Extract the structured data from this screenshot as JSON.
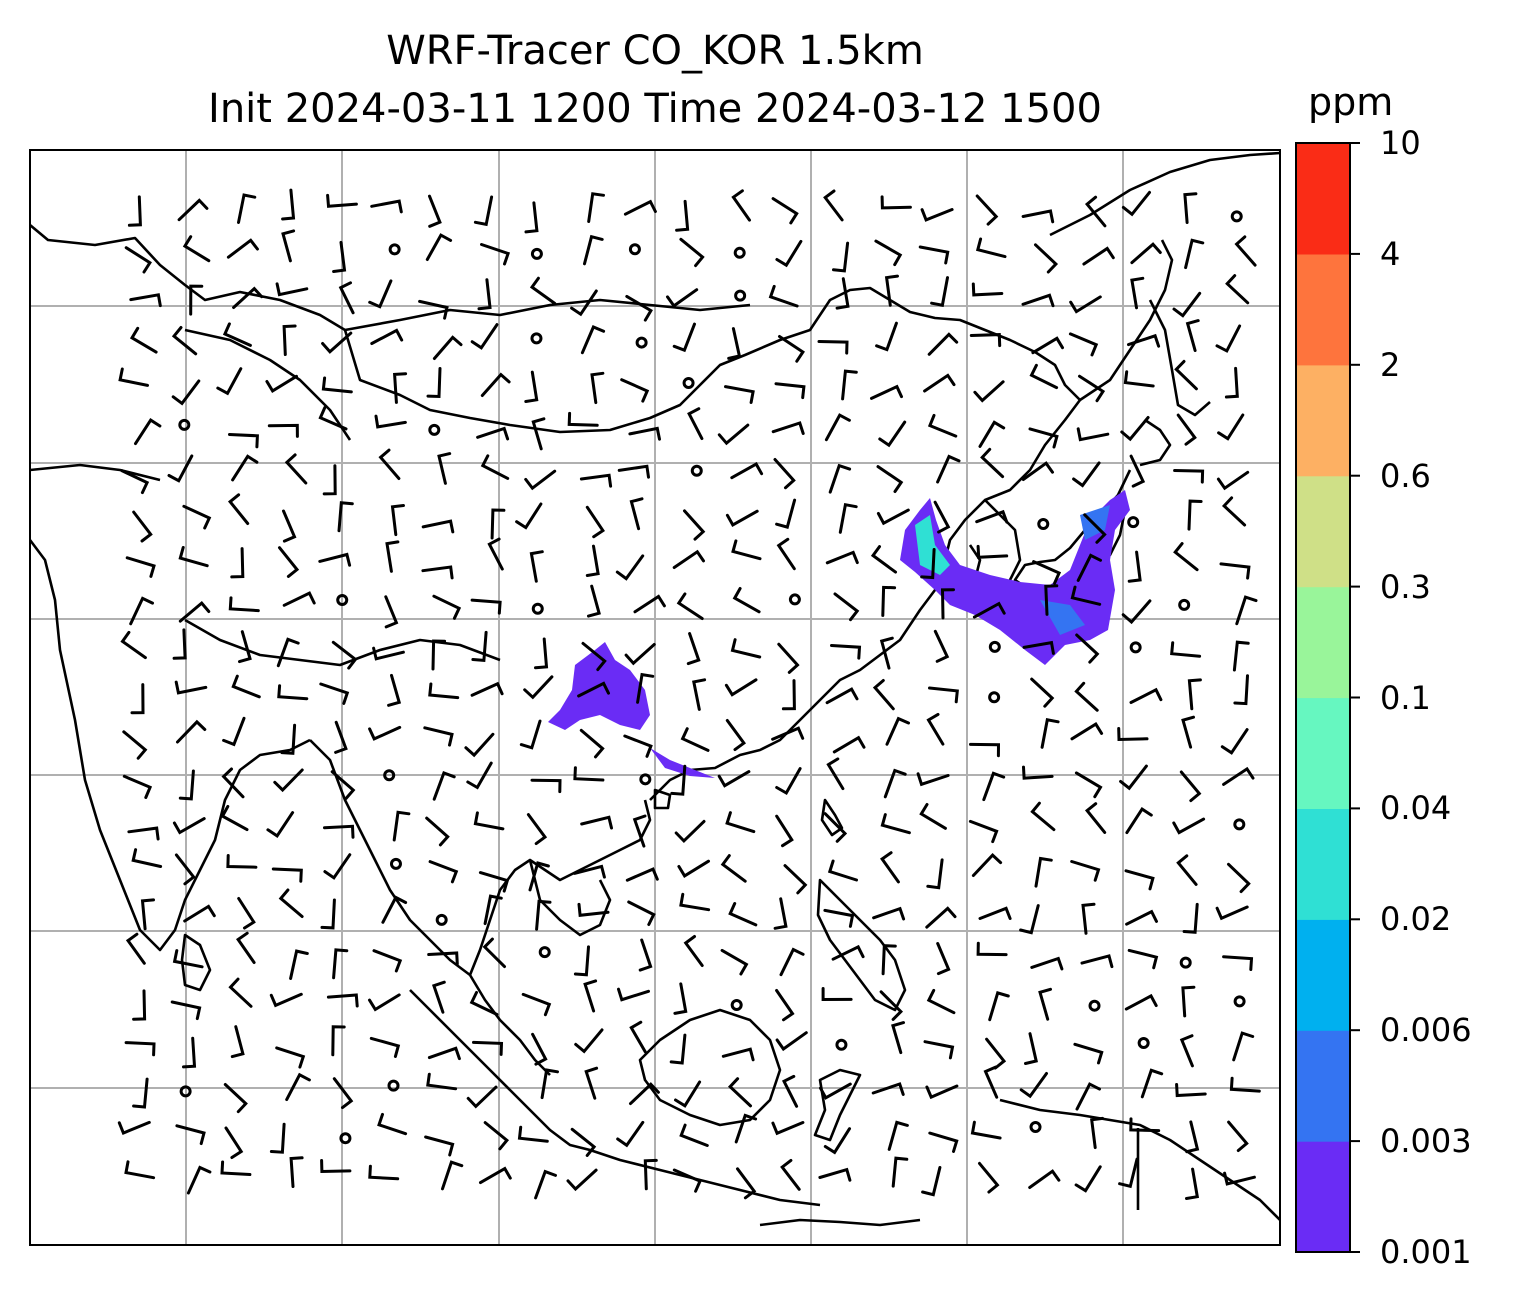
{
  "title": {
    "line1": "WRF-Tracer CO_KOR 1.5km",
    "line2": "Init 2024-03-11 1200 Time 2024-03-12 1500"
  },
  "colorbar": {
    "unit": "ppm",
    "levels": [
      "0.001",
      "0.003",
      "0.006",
      "0.02",
      "0.04",
      "0.1",
      "0.3",
      "0.6",
      "2",
      "4",
      "10"
    ],
    "colors": [
      "#6a2cf5",
      "#3474f2",
      "#00b0ef",
      "#2fe0d4",
      "#66f7c0",
      "#99f59a",
      "#cfe087",
      "#fdb063",
      "#fe743d",
      "#fa2c16"
    ]
  },
  "map": {
    "grid_color": "#b0b0b0",
    "coast_color": "#000000",
    "plume_colors": {
      "low": "#6a2cf5",
      "mid": "#3474f2",
      "high": "#2fe0d4",
      "peak": "#66f7c0"
    }
  }
}
